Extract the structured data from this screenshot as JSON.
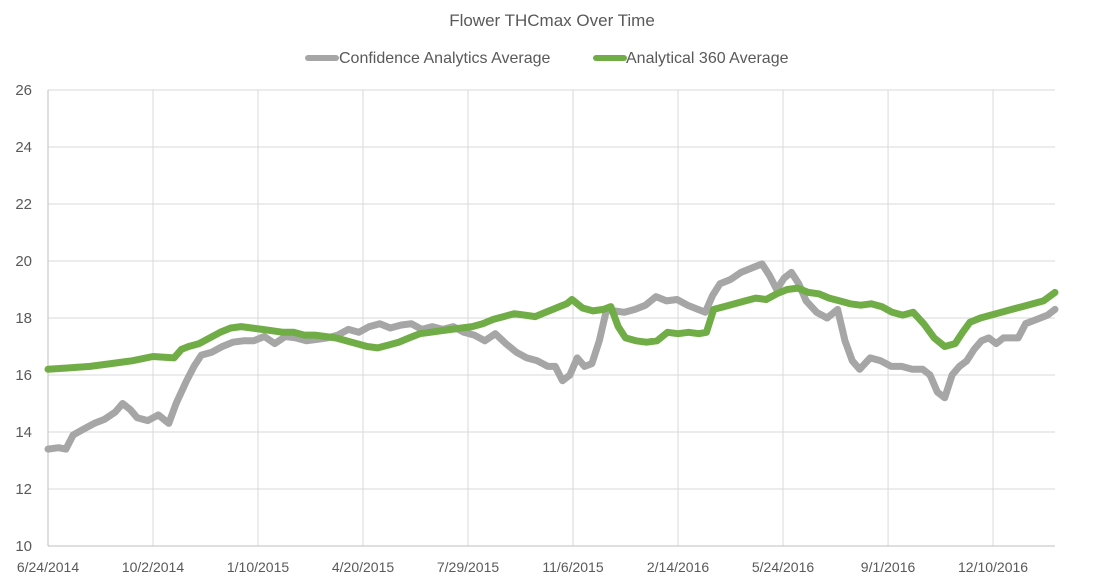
{
  "chart_data": {
    "type": "line",
    "title": "Flower THCmax Over Time",
    "xlabel": "",
    "ylabel": "",
    "ylim": [
      10,
      26
    ],
    "yticks": [
      "10",
      "12",
      "14",
      "16",
      "18",
      "20",
      "22",
      "24",
      "26"
    ],
    "xlim": [
      "6/24/2014",
      "2/7/2017"
    ],
    "xticks": [
      "6/24/2014",
      "10/2/2014",
      "1/10/2015",
      "4/20/2015",
      "7/29/2015",
      "11/6/2015",
      "2/14/2016",
      "5/24/2016",
      "9/1/2016",
      "12/10/2016"
    ],
    "grid": true,
    "legend_position": "top",
    "series": [
      {
        "name": "Confidence Analytics Average",
        "color": "#a6a6a6",
        "points": [
          [
            "6/24/2014",
            13.4
          ],
          [
            "7/4/2014",
            13.45
          ],
          [
            "7/11/2014",
            13.4
          ],
          [
            "7/18/2014",
            13.9
          ],
          [
            "7/28/2014",
            14.1
          ],
          [
            "8/7/2014",
            14.3
          ],
          [
            "8/17/2014",
            14.45
          ],
          [
            "8/27/2014",
            14.7
          ],
          [
            "9/3/2014",
            15.0
          ],
          [
            "9/10/2014",
            14.8
          ],
          [
            "9/17/2014",
            14.5
          ],
          [
            "9/27/2014",
            14.4
          ],
          [
            "10/7/2014",
            14.6
          ],
          [
            "10/17/2014",
            14.3
          ],
          [
            "10/24/2014",
            15.0
          ],
          [
            "11/3/2014",
            15.8
          ],
          [
            "11/10/2014",
            16.3
          ],
          [
            "11/17/2014",
            16.7
          ],
          [
            "11/27/2014",
            16.8
          ],
          [
            "12/7/2014",
            17.0
          ],
          [
            "12/17/2014",
            17.15
          ],
          [
            "12/27/2014",
            17.2
          ],
          [
            "1/6/2015",
            17.2
          ],
          [
            "1/16/2015",
            17.35
          ],
          [
            "1/26/2015",
            17.1
          ],
          [
            "2/5/2015",
            17.35
          ],
          [
            "2/15/2015",
            17.3
          ],
          [
            "2/25/2015",
            17.2
          ],
          [
            "3/7/2015",
            17.25
          ],
          [
            "3/17/2015",
            17.3
          ],
          [
            "3/27/2015",
            17.4
          ],
          [
            "4/6/2015",
            17.6
          ],
          [
            "4/16/2015",
            17.5
          ],
          [
            "4/26/2015",
            17.7
          ],
          [
            "5/6/2015",
            17.8
          ],
          [
            "5/16/2015",
            17.65
          ],
          [
            "5/26/2015",
            17.75
          ],
          [
            "6/5/2015",
            17.8
          ],
          [
            "6/15/2015",
            17.6
          ],
          [
            "6/25/2015",
            17.7
          ],
          [
            "7/5/2015",
            17.6
          ],
          [
            "7/15/2015",
            17.7
          ],
          [
            "7/25/2015",
            17.5
          ],
          [
            "8/4/2015",
            17.4
          ],
          [
            "8/14/2015",
            17.2
          ],
          [
            "8/24/2015",
            17.45
          ],
          [
            "9/3/2015",
            17.1
          ],
          [
            "9/13/2015",
            16.8
          ],
          [
            "9/23/2015",
            16.6
          ],
          [
            "10/3/2015",
            16.5
          ],
          [
            "10/13/2015",
            16.3
          ],
          [
            "10/20/2015",
            16.3
          ],
          [
            "10/27/2015",
            15.8
          ],
          [
            "11/3/2015",
            16.0
          ],
          [
            "11/10/2015",
            16.6
          ],
          [
            "11/17/2015",
            16.3
          ],
          [
            "11/24/2015",
            16.4
          ],
          [
            "12/1/2015",
            17.2
          ],
          [
            "12/8/2015",
            18.3
          ],
          [
            "12/15/2015",
            18.25
          ],
          [
            "12/25/2015",
            18.2
          ],
          [
            "1/4/2016",
            18.3
          ],
          [
            "1/14/2016",
            18.45
          ],
          [
            "1/24/2016",
            18.75
          ],
          [
            "2/3/2016",
            18.6
          ],
          [
            "2/13/2016",
            18.65
          ],
          [
            "2/23/2016",
            18.45
          ],
          [
            "3/4/2016",
            18.3
          ],
          [
            "3/11/2016",
            18.2
          ],
          [
            "3/18/2016",
            18.8
          ],
          [
            "3/25/2016",
            19.2
          ],
          [
            "4/4/2016",
            19.35
          ],
          [
            "4/14/2016",
            19.6
          ],
          [
            "4/24/2016",
            19.75
          ],
          [
            "5/4/2016",
            19.9
          ],
          [
            "5/11/2016",
            19.5
          ],
          [
            "5/18/2016",
            19.0
          ],
          [
            "5/25/2016",
            19.4
          ],
          [
            "6/1/2016",
            19.6
          ],
          [
            "6/8/2016",
            19.2
          ],
          [
            "6/15/2016",
            18.6
          ],
          [
            "6/25/2016",
            18.2
          ],
          [
            "7/5/2016",
            18.0
          ],
          [
            "7/15/2016",
            18.3
          ],
          [
            "7/22/2016",
            17.2
          ],
          [
            "7/29/2016",
            16.5
          ],
          [
            "8/5/2016",
            16.2
          ],
          [
            "8/15/2016",
            16.6
          ],
          [
            "8/25/2016",
            16.5
          ],
          [
            "9/4/2016",
            16.3
          ],
          [
            "9/14/2016",
            16.3
          ],
          [
            "9/24/2016",
            16.2
          ],
          [
            "10/4/2016",
            16.2
          ],
          [
            "10/11/2016",
            16.0
          ],
          [
            "10/18/2016",
            15.4
          ],
          [
            "10/25/2016",
            15.2
          ],
          [
            "11/1/2016",
            16.0
          ],
          [
            "11/8/2016",
            16.3
          ],
          [
            "11/15/2016",
            16.5
          ],
          [
            "11/22/2016",
            16.9
          ],
          [
            "11/29/2016",
            17.2
          ],
          [
            "12/6/2016",
            17.3
          ],
          [
            "12/13/2016",
            17.1
          ],
          [
            "12/20/2016",
            17.3
          ],
          [
            "12/27/2016",
            17.3
          ],
          [
            "1/3/2017",
            17.3
          ],
          [
            "1/10/2017",
            17.8
          ],
          [
            "1/17/2017",
            17.9
          ],
          [
            "1/24/2017",
            18.0
          ],
          [
            "1/31/2017",
            18.1
          ],
          [
            "2/7/2017",
            18.3
          ]
        ]
      },
      {
        "name": "Analytical 360 Average",
        "color": "#70ad47",
        "points": [
          [
            "6/24/2014",
            16.2
          ],
          [
            "7/14/2014",
            16.25
          ],
          [
            "8/3/2014",
            16.3
          ],
          [
            "8/23/2014",
            16.4
          ],
          [
            "9/12/2014",
            16.5
          ],
          [
            "10/2/2014",
            16.65
          ],
          [
            "10/22/2014",
            16.6
          ],
          [
            "10/29/2014",
            16.9
          ],
          [
            "11/5/2014",
            17.0
          ],
          [
            "11/15/2014",
            17.1
          ],
          [
            "11/25/2014",
            17.3
          ],
          [
            "12/5/2014",
            17.5
          ],
          [
            "12/15/2014",
            17.65
          ],
          [
            "12/25/2014",
            17.7
          ],
          [
            "1/4/2015",
            17.65
          ],
          [
            "1/14/2015",
            17.6
          ],
          [
            "1/24/2015",
            17.55
          ],
          [
            "2/3/2015",
            17.5
          ],
          [
            "2/13/2015",
            17.5
          ],
          [
            "2/23/2015",
            17.4
          ],
          [
            "3/5/2015",
            17.4
          ],
          [
            "3/15/2015",
            17.35
          ],
          [
            "3/25/2015",
            17.3
          ],
          [
            "4/4/2015",
            17.2
          ],
          [
            "4/14/2015",
            17.1
          ],
          [
            "4/24/2015",
            17.0
          ],
          [
            "5/4/2015",
            16.95
          ],
          [
            "5/14/2015",
            17.05
          ],
          [
            "5/24/2015",
            17.15
          ],
          [
            "6/3/2015",
            17.3
          ],
          [
            "6/13/2015",
            17.45
          ],
          [
            "6/23/2015",
            17.5
          ],
          [
            "7/3/2015",
            17.55
          ],
          [
            "7/13/2015",
            17.6
          ],
          [
            "7/23/2015",
            17.65
          ],
          [
            "8/2/2015",
            17.7
          ],
          [
            "8/12/2015",
            17.8
          ],
          [
            "8/22/2015",
            17.95
          ],
          [
            "9/1/2015",
            18.05
          ],
          [
            "9/11/2015",
            18.15
          ],
          [
            "9/21/2015",
            18.1
          ],
          [
            "10/1/2015",
            18.05
          ],
          [
            "10/11/2015",
            18.2
          ],
          [
            "10/21/2015",
            18.35
          ],
          [
            "10/31/2015",
            18.5
          ],
          [
            "11/5/2015",
            18.65
          ],
          [
            "11/15/2015",
            18.35
          ],
          [
            "11/25/2015",
            18.25
          ],
          [
            "12/5/2015",
            18.3
          ],
          [
            "12/12/2015",
            18.4
          ],
          [
            "12/19/2015",
            17.7
          ],
          [
            "12/26/2015",
            17.3
          ],
          [
            "1/5/2016",
            17.2
          ],
          [
            "1/15/2016",
            17.15
          ],
          [
            "1/25/2016",
            17.2
          ],
          [
            "2/4/2016",
            17.5
          ],
          [
            "2/14/2016",
            17.45
          ],
          [
            "2/24/2016",
            17.5
          ],
          [
            "3/5/2016",
            17.45
          ],
          [
            "3/12/2016",
            17.5
          ],
          [
            "3/19/2016",
            18.3
          ],
          [
            "3/29/2016",
            18.4
          ],
          [
            "4/8/2016",
            18.5
          ],
          [
            "4/18/2016",
            18.6
          ],
          [
            "4/28/2016",
            18.7
          ],
          [
            "5/8/2016",
            18.65
          ],
          [
            "5/18/2016",
            18.85
          ],
          [
            "5/28/2016",
            19.0
          ],
          [
            "6/7/2016",
            19.05
          ],
          [
            "6/17/2016",
            18.9
          ],
          [
            "6/27/2016",
            18.85
          ],
          [
            "7/7/2016",
            18.7
          ],
          [
            "7/17/2016",
            18.6
          ],
          [
            "7/27/2016",
            18.5
          ],
          [
            "8/6/2016",
            18.45
          ],
          [
            "8/16/2016",
            18.5
          ],
          [
            "8/26/2016",
            18.4
          ],
          [
            "9/5/2016",
            18.2
          ],
          [
            "9/15/2016",
            18.1
          ],
          [
            "9/25/2016",
            18.2
          ],
          [
            "10/5/2016",
            17.8
          ],
          [
            "10/15/2016",
            17.3
          ],
          [
            "10/25/2016",
            17.0
          ],
          [
            "11/4/2016",
            17.1
          ],
          [
            "11/11/2016",
            17.5
          ],
          [
            "11/18/2016",
            17.85
          ],
          [
            "11/28/2016",
            18.0
          ],
          [
            "12/8/2016",
            18.1
          ],
          [
            "12/18/2016",
            18.2
          ],
          [
            "12/28/2016",
            18.3
          ],
          [
            "1/7/2017",
            18.4
          ],
          [
            "1/17/2017",
            18.5
          ],
          [
            "1/27/2017",
            18.6
          ],
          [
            "2/7/2017",
            18.9
          ]
        ]
      }
    ]
  }
}
